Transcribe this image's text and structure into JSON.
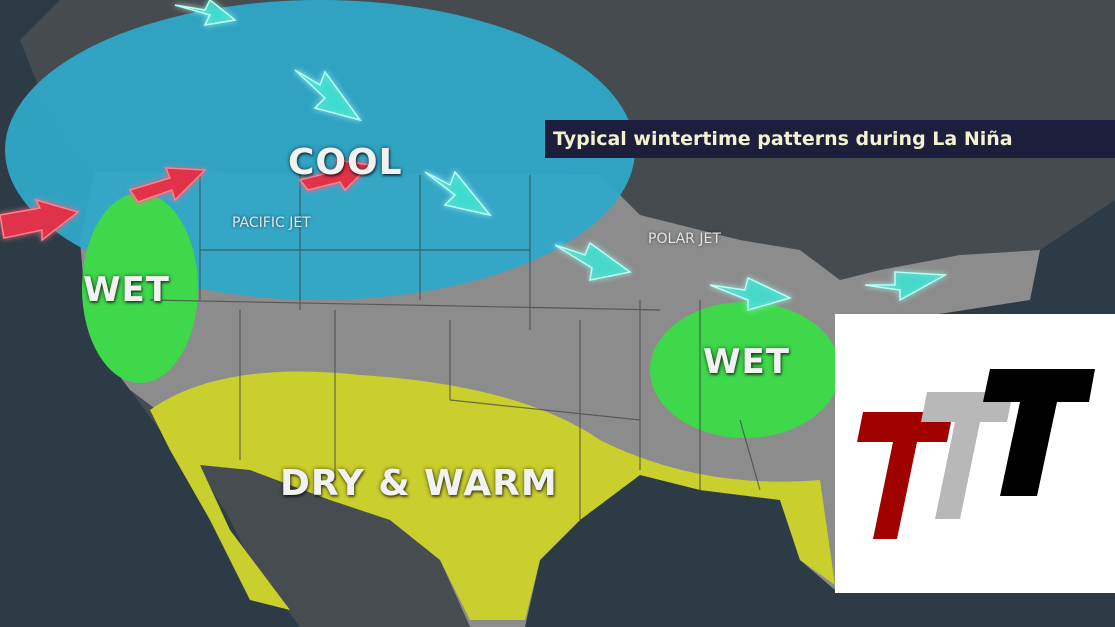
{
  "title": "Typical wintertime patterns during La Niña",
  "labels": {
    "cool": "COOL",
    "wet_west": "WET",
    "wet_east": "WET",
    "dry_warm": "DRY & WARM",
    "pacific_jet": "PACIFIC JET",
    "polar_jet": "POLAR JET"
  },
  "colors": {
    "ocean": "#2c3b45",
    "canada": "#454a4e",
    "us_land": "#8c8c8c",
    "cool_region": "#2fa8c9",
    "wet_region": "#3fd84a",
    "dry_warm_region": "#c9cf2c",
    "pacific_jet_arrows": "#e0304a",
    "polar_jet_arrows": "#3fe0d0"
  },
  "logo": {
    "letters": "TTT",
    "colors": [
      "#a00000",
      "#b8b8b8",
      "#000000"
    ]
  }
}
